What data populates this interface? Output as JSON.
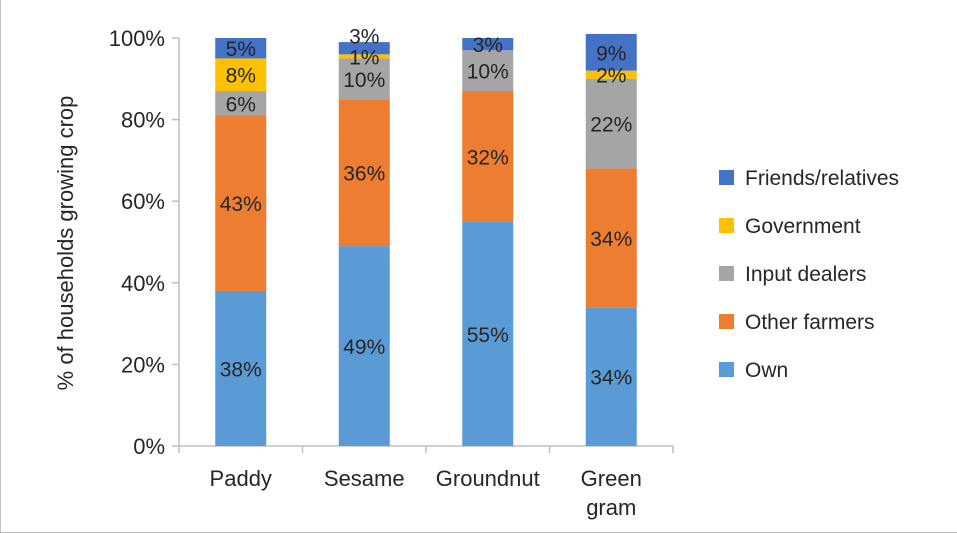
{
  "chart_data": {
    "type": "bar",
    "stacked": true,
    "categories": [
      [
        "Paddy"
      ],
      [
        "Sesame"
      ],
      [
        "Groundnut"
      ],
      [
        "Green",
        "gram"
      ]
    ],
    "ylabel": "% of households growing crop",
    "ylim": [
      0,
      100
    ],
    "yticks": [
      "0%",
      "20%",
      "40%",
      "60%",
      "80%",
      "100%"
    ],
    "legend_position": "right",
    "series": [
      {
        "name": "Own",
        "color": "#5b9bd5",
        "values": [
          38,
          49,
          55,
          34
        ],
        "labels": [
          "38%",
          "49%",
          "55%",
          "34%"
        ]
      },
      {
        "name": "Other farmers",
        "color": "#ed7d31",
        "values": [
          43,
          36,
          32,
          34
        ],
        "labels": [
          "43%",
          "36%",
          "32%",
          "34%"
        ]
      },
      {
        "name": "Input dealers",
        "color": "#a5a5a5",
        "values": [
          6,
          10,
          10,
          22
        ],
        "labels": [
          "6%",
          "10%",
          "10%",
          "22%"
        ]
      },
      {
        "name": "Government",
        "color": "#ffc000",
        "values": [
          8,
          1,
          0,
          2
        ],
        "labels": [
          "8%",
          "1%",
          "",
          "2%"
        ]
      },
      {
        "name": "Friends/relatives",
        "color": "#4472c4",
        "values": [
          5,
          3,
          3,
          9
        ],
        "labels": [
          "5%",
          "3%",
          "3%",
          "9%"
        ]
      }
    ]
  }
}
